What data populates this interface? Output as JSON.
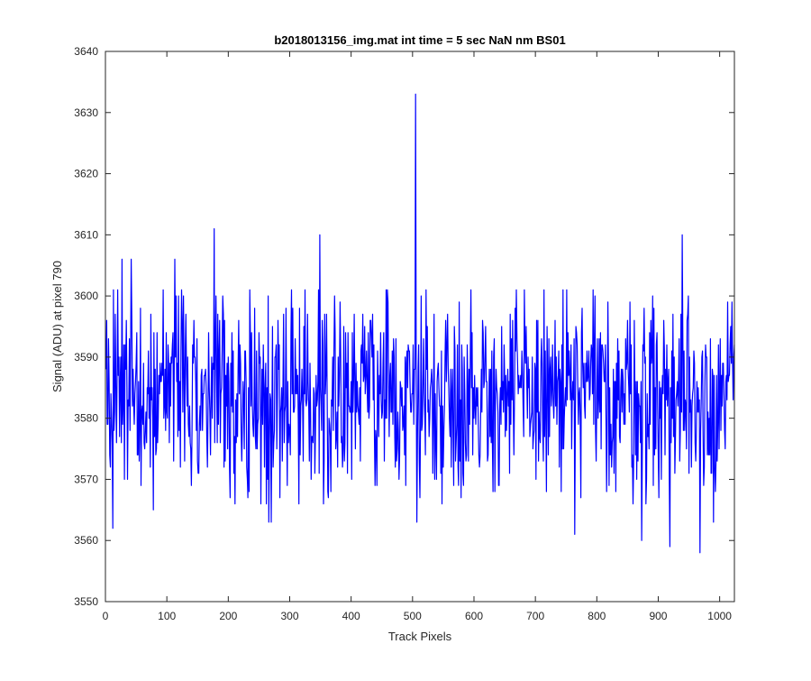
{
  "chart_data": {
    "type": "line",
    "title": "b2018013156_img.mat int time = 5 sec  NaN nm BS01",
    "xlabel": "Track Pixels",
    "ylabel": "Signal (ADU) at pixel 790",
    "xlim": [
      0,
      1024
    ],
    "ylim": [
      3550,
      3640
    ],
    "xticks": [
      0,
      100,
      200,
      300,
      400,
      500,
      600,
      700,
      800,
      900,
      1000
    ],
    "yticks": [
      3550,
      3560,
      3570,
      3580,
      3590,
      3600,
      3610,
      3620,
      3630,
      3640
    ],
    "grid": false,
    "legend": "none",
    "line_color": "#0000ff",
    "series": [
      {
        "x_start": 1,
        "x_step": 1,
        "noise_mean": 3584,
        "noise_spread": 8,
        "approximate_noise_trace": true,
        "values_notable": [
          {
            "x": 12,
            "y": 3562
          },
          {
            "x": 20,
            "y": 3601
          },
          {
            "x": 27,
            "y": 3606
          },
          {
            "x": 42,
            "y": 3606
          },
          {
            "x": 78,
            "y": 3565
          },
          {
            "x": 113,
            "y": 3606
          },
          {
            "x": 177,
            "y": 3611
          },
          {
            "x": 203,
            "y": 3567
          },
          {
            "x": 266,
            "y": 3563
          },
          {
            "x": 270,
            "y": 3563
          },
          {
            "x": 349,
            "y": 3610
          },
          {
            "x": 505,
            "y": 3633
          },
          {
            "x": 507,
            "y": 3563
          },
          {
            "x": 764,
            "y": 3561
          },
          {
            "x": 873,
            "y": 3560
          },
          {
            "x": 919,
            "y": 3559
          },
          {
            "x": 939,
            "y": 3610
          },
          {
            "x": 968,
            "y": 3558
          },
          {
            "x": 990,
            "y": 3563
          }
        ]
      }
    ]
  }
}
